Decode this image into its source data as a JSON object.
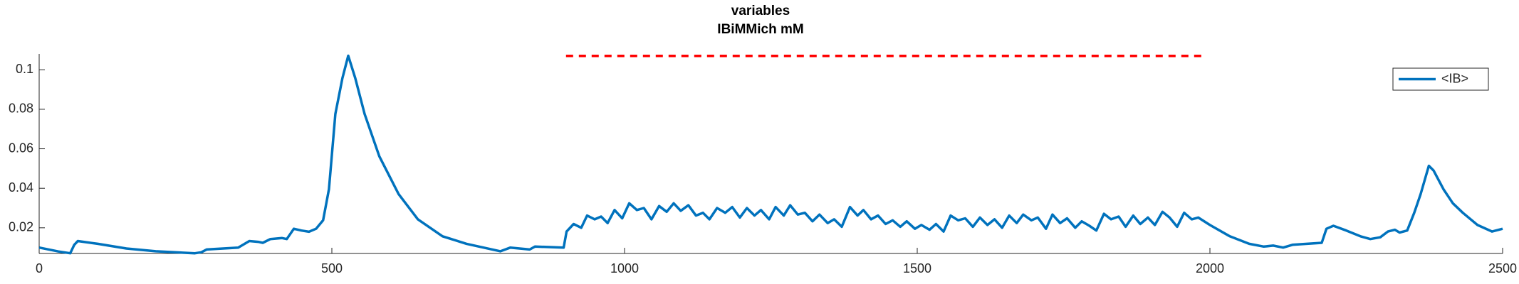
{
  "chart_data": {
    "type": "line",
    "title": "variables",
    "subtitle": "IBiMMich mM",
    "x": [
      0,
      33,
      53,
      60,
      66,
      100,
      149,
      199,
      266,
      277,
      286,
      340,
      359,
      374,
      382,
      395,
      415,
      423,
      435,
      448,
      461,
      473,
      485,
      495,
      506,
      518,
      528,
      540,
      556,
      581,
      614,
      647,
      689,
      730,
      788,
      805,
      838,
      847,
      896,
      901,
      913,
      926,
      936,
      949,
      960,
      971,
      983,
      996,
      1008,
      1021,
      1033,
      1046,
      1059,
      1072,
      1084,
      1096,
      1109,
      1122,
      1134,
      1145,
      1158,
      1172,
      1184,
      1197,
      1209,
      1222,
      1233,
      1247,
      1258,
      1272,
      1283,
      1296,
      1308,
      1321,
      1333,
      1347,
      1358,
      1371,
      1385,
      1398,
      1408,
      1421,
      1433,
      1446,
      1458,
      1471,
      1482,
      1496,
      1507,
      1521,
      1532,
      1545,
      1557,
      1570,
      1582,
      1595,
      1607,
      1620,
      1632,
      1645,
      1657,
      1670,
      1681,
      1695,
      1706,
      1720,
      1731,
      1744,
      1756,
      1770,
      1781,
      1794,
      1806,
      1819,
      1831,
      1844,
      1856,
      1869,
      1881,
      1894,
      1906,
      1919,
      1931,
      1944,
      1956,
      1969,
      1980,
      2000,
      2034,
      2067,
      2092,
      2108,
      2125,
      2141,
      2191,
      2199,
      2211,
      2233,
      2257,
      2274,
      2291,
      2304,
      2316,
      2324,
      2337,
      2349,
      2360,
      2374,
      2382,
      2399,
      2415,
      2432,
      2457,
      2482,
      2500
    ],
    "series": [
      {
        "name": "<IB>",
        "color": "#0072bd",
        "values": [
          0.01,
          0.008,
          0.0071,
          0.0114,
          0.0133,
          0.0119,
          0.0095,
          0.0081,
          0.0071,
          0.0076,
          0.009,
          0.01,
          0.0133,
          0.0129,
          0.0124,
          0.0143,
          0.0148,
          0.0143,
          0.0195,
          0.0186,
          0.018,
          0.0195,
          0.0238,
          0.0395,
          0.0776,
          0.0957,
          0.1071,
          0.0957,
          0.0776,
          0.0562,
          0.0371,
          0.0243,
          0.0157,
          0.0119,
          0.0081,
          0.01,
          0.009,
          0.0105,
          0.01,
          0.0181,
          0.0219,
          0.02,
          0.0262,
          0.0243,
          0.0257,
          0.0224,
          0.029,
          0.0248,
          0.0324,
          0.029,
          0.03,
          0.0243,
          0.031,
          0.0281,
          0.0324,
          0.0286,
          0.0314,
          0.0262,
          0.0276,
          0.0243,
          0.03,
          0.0276,
          0.0305,
          0.0252,
          0.03,
          0.0262,
          0.029,
          0.0243,
          0.0305,
          0.0262,
          0.0314,
          0.0267,
          0.0276,
          0.0233,
          0.0267,
          0.0224,
          0.0243,
          0.0205,
          0.0305,
          0.0262,
          0.029,
          0.0243,
          0.0262,
          0.0219,
          0.0238,
          0.0205,
          0.0233,
          0.0195,
          0.0214,
          0.019,
          0.0219,
          0.0181,
          0.0262,
          0.0238,
          0.0248,
          0.0205,
          0.0252,
          0.0214,
          0.0243,
          0.02,
          0.0262,
          0.0224,
          0.0267,
          0.0238,
          0.0252,
          0.0195,
          0.0267,
          0.0224,
          0.0248,
          0.02,
          0.0233,
          0.021,
          0.0186,
          0.0271,
          0.0243,
          0.0257,
          0.0205,
          0.0262,
          0.0219,
          0.0252,
          0.0214,
          0.0281,
          0.0252,
          0.0205,
          0.0276,
          0.0243,
          0.0252,
          0.0214,
          0.0157,
          0.0119,
          0.0105,
          0.011,
          0.01,
          0.0114,
          0.0124,
          0.0195,
          0.021,
          0.0186,
          0.0157,
          0.0143,
          0.0152,
          0.0181,
          0.019,
          0.0176,
          0.0186,
          0.0276,
          0.0371,
          0.0514,
          0.049,
          0.0395,
          0.0324,
          0.0276,
          0.0214,
          0.0181,
          0.0195
        ]
      }
    ],
    "reference_line": {
      "x": [
        900,
        1990
      ],
      "y": [
        0.107,
        0.107
      ],
      "color": "#ff0000"
    },
    "xlim": [
      0,
      2500
    ],
    "xticks": [
      0,
      500,
      1000,
      1500,
      2000,
      2500
    ],
    "ylim": [
      0.007,
      0.108
    ],
    "yticks": [
      0.02,
      0.04,
      0.06,
      0.08,
      0.1
    ],
    "legend": "upper right"
  }
}
